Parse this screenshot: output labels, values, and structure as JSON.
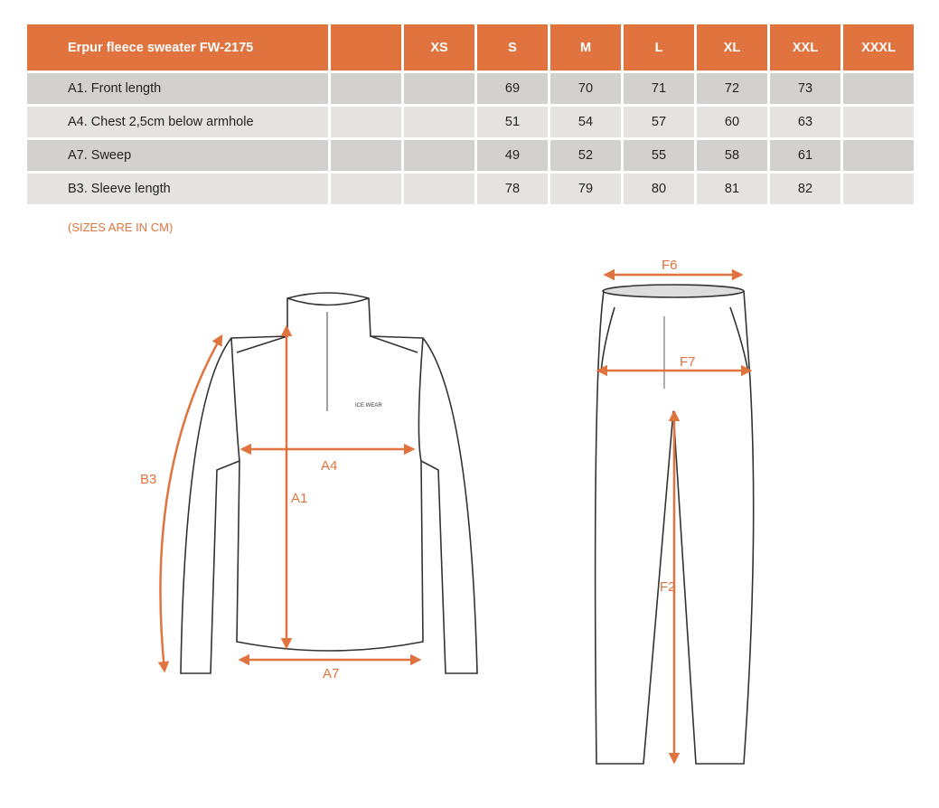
{
  "table": {
    "title": "Erpur fleece sweater FW-2175",
    "sizes": [
      "XS",
      "S",
      "M",
      "L",
      "XL",
      "XXL",
      "XXXL"
    ],
    "rows": [
      {
        "label": "A1. Front length",
        "values": [
          "",
          "69",
          "70",
          "71",
          "72",
          "73",
          ""
        ]
      },
      {
        "label": "A4. Chest 2,5cm below armhole",
        "values": [
          "",
          "51",
          "54",
          "57",
          "60",
          "63",
          ""
        ]
      },
      {
        "label": "A7. Sweep",
        "values": [
          "",
          "49",
          "52",
          "55",
          "58",
          "61",
          ""
        ]
      },
      {
        "label": "B3. Sleeve length",
        "values": [
          "",
          "78",
          "79",
          "80",
          "81",
          "82",
          ""
        ]
      }
    ]
  },
  "note": "(SIZES ARE IN CM)",
  "sweater_labels": {
    "a1": "A1",
    "a4": "A4",
    "a7": "A7",
    "b3": "B3",
    "logo": "ICE WEAR"
  },
  "pants_labels": {
    "f6": "F6",
    "f7": "F7",
    "f2": "F2"
  },
  "colors": {
    "accent": "#e0733e",
    "row_dark": "#d2d1cf",
    "row_light": "#e4e3e1"
  }
}
